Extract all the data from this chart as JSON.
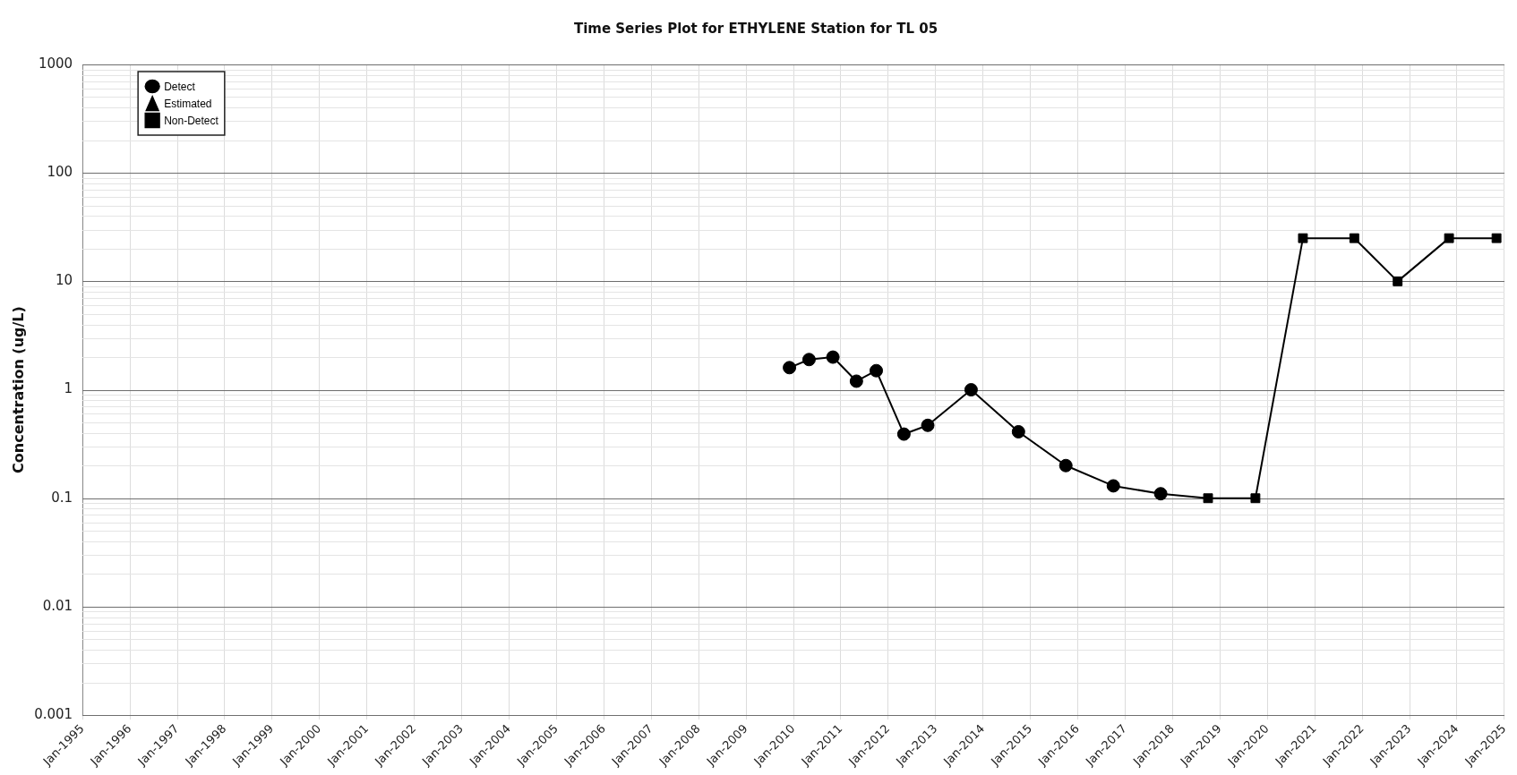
{
  "chart_data": {
    "type": "line",
    "title": "Time Series Plot for ETHYLENE Station for TL 05",
    "ylabel": "Concentration (ug/L)",
    "log": "y",
    "grid": true,
    "legend": "top left",
    "xlim": [
      "1995-01",
      "2025-01"
    ],
    "xticks": [
      {
        "value": "1995-01",
        "label": "Jan-1995"
      },
      {
        "value": "1996-01",
        "label": "Jan-1996"
      },
      {
        "value": "1997-01",
        "label": "Jan-1997"
      },
      {
        "value": "1998-01",
        "label": "Jan-1998"
      },
      {
        "value": "1999-01",
        "label": "Jan-1999"
      },
      {
        "value": "2000-01",
        "label": "Jan-2000"
      },
      {
        "value": "2001-01",
        "label": "Jan-2001"
      },
      {
        "value": "2002-01",
        "label": "Jan-2002"
      },
      {
        "value": "2003-01",
        "label": "Jan-2003"
      },
      {
        "value": "2004-01",
        "label": "Jan-2004"
      },
      {
        "value": "2005-01",
        "label": "Jan-2005"
      },
      {
        "value": "2006-01",
        "label": "Jan-2006"
      },
      {
        "value": "2007-01",
        "label": "Jan-2007"
      },
      {
        "value": "2008-01",
        "label": "Jan-2008"
      },
      {
        "value": "2009-01",
        "label": "Jan-2009"
      },
      {
        "value": "2010-01",
        "label": "Jan-2010"
      },
      {
        "value": "2011-01",
        "label": "Jan-2011"
      },
      {
        "value": "2012-01",
        "label": "Jan-2012"
      },
      {
        "value": "2013-01",
        "label": "Jan-2013"
      },
      {
        "value": "2014-01",
        "label": "Jan-2014"
      },
      {
        "value": "2015-01",
        "label": "Jan-2015"
      },
      {
        "value": "2016-01",
        "label": "Jan-2016"
      },
      {
        "value": "2017-01",
        "label": "Jan-2017"
      },
      {
        "value": "2018-01",
        "label": "Jan-2018"
      },
      {
        "value": "2019-01",
        "label": "Jan-2019"
      },
      {
        "value": "2020-01",
        "label": "Jan-2020"
      },
      {
        "value": "2021-01",
        "label": "Jan-2021"
      },
      {
        "value": "2022-01",
        "label": "Jan-2022"
      },
      {
        "value": "2023-01",
        "label": "Jan-2023"
      },
      {
        "value": "2024-01",
        "label": "Jan-2024"
      },
      {
        "value": "2025-01",
        "label": "Jan-2025"
      }
    ],
    "ylim": [
      0.001,
      1000
    ],
    "yticks": [
      0.001,
      0.01,
      0.1,
      1,
      10,
      100,
      1000
    ],
    "series": [
      {
        "color": "#000000",
        "marker": "none",
        "line_style": "solid",
        "x": [
          "2009-12",
          "2010-05",
          "2010-11",
          "2011-05",
          "2011-10",
          "2012-05",
          "2012-11",
          "2013-10",
          "2014-10",
          "2015-10",
          "2016-10",
          "2017-10",
          "2018-10",
          "2019-10",
          "2020-10",
          "2021-11",
          "2022-10",
          "2023-11",
          "2024-11"
        ],
        "values": [
          1.6,
          1.9,
          2.0,
          1.2,
          1.5,
          0.39,
          0.47,
          1,
          0.41,
          0.2,
          0.13,
          0.11,
          0.1,
          0.1,
          25,
          25,
          10,
          25,
          25
        ]
      },
      {
        "type": "scatter",
        "name": "Detect",
        "color": "#000000",
        "marker": "circle",
        "x": [
          "2009-12",
          "2010-05",
          "2010-11",
          "2011-05",
          "2011-10",
          "2012-05",
          "2012-11",
          "2013-10",
          "2014-10",
          "2015-10",
          "2016-10",
          "2017-10"
        ],
        "values": [
          1.6,
          1.9,
          2.0,
          1.2,
          1.5,
          0.39,
          0.47,
          1,
          0.41,
          0.2,
          0.13,
          0.11
        ]
      },
      {
        "type": "scatter",
        "name": "Estimated",
        "color": "#000000",
        "marker": "triangle"
      },
      {
        "type": "scatter",
        "name": "Non-Detect",
        "color": "#000000",
        "marker": "square",
        "x": [
          "2018-10",
          "2019-10",
          "2020-10",
          "2021-11",
          "2022-10",
          "2023-11",
          "2024-11"
        ],
        "values": [
          0.1,
          0.1,
          25,
          25,
          10,
          25,
          25
        ]
      }
    ]
  }
}
